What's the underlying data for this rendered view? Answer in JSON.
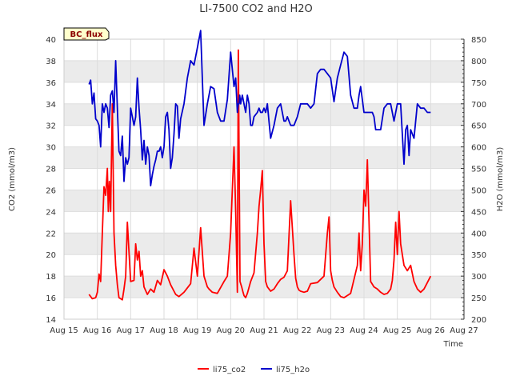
{
  "chart_data": {
    "type": "line",
    "title": "LI-7500 CO2 and H2O",
    "badge": "BC_flux",
    "xlabel": "Time",
    "ylabel_left": "CO2 (mmol/m3)",
    "ylabel_right": "H2O (mmol/m3)",
    "x_tick_labels": [
      "Aug 15",
      "Aug 16",
      "Aug 17",
      "Aug 18",
      "Aug 19",
      "Aug 20",
      "Aug 21",
      "Aug 22",
      "Aug 23",
      "Aug 24",
      "Aug 25",
      "Aug 26",
      "Aug 27"
    ],
    "xlim": [
      15,
      27
    ],
    "ylim_left": [
      14,
      40
    ],
    "ylim_right": [
      200,
      850
    ],
    "y_left_ticks": [
      "14",
      "16",
      "18",
      "20",
      "22",
      "24",
      "26",
      "28",
      "30",
      "32",
      "34",
      "36",
      "38",
      "40"
    ],
    "y_right_ticks": [
      "200",
      "250",
      "300",
      "350",
      "400",
      "450",
      "500",
      "550",
      "600",
      "650",
      "700",
      "750",
      "800",
      "850"
    ],
    "legend": [
      "li75_co2",
      "li75_h2o"
    ],
    "colors": {
      "co2": "#ff0000",
      "h2o": "#0000cc",
      "band": "#ebebeb",
      "grid": "#dddddd"
    },
    "series": [
      {
        "name": "li75_co2",
        "axis": "left",
        "x": [
          15.75,
          15.85,
          15.95,
          16.0,
          16.05,
          16.1,
          16.15,
          16.2,
          16.25,
          16.3,
          16.33,
          16.36,
          16.4,
          16.45,
          16.5,
          16.55,
          16.6,
          16.65,
          16.7,
          16.75,
          16.8,
          16.85,
          16.9,
          17.0,
          17.1,
          17.15,
          17.2,
          17.25,
          17.3,
          17.35,
          17.4,
          17.5,
          17.6,
          17.7,
          17.8,
          17.9,
          18.0,
          18.1,
          18.2,
          18.3,
          18.35,
          18.45,
          18.6,
          18.8,
          18.9,
          19.0,
          19.1,
          19.2,
          19.25,
          19.3,
          19.35,
          19.45,
          19.6,
          19.8,
          19.9,
          20.0,
          20.05,
          20.1,
          20.15,
          20.2,
          20.23,
          20.28,
          20.33,
          20.37,
          20.4,
          20.45,
          20.5,
          20.6,
          20.7,
          20.8,
          20.85,
          20.9,
          20.95,
          21.0,
          21.05,
          21.1,
          21.2,
          21.3,
          21.4,
          21.5,
          21.6,
          21.7,
          21.8,
          21.9,
          21.95,
          22.0,
          22.05,
          22.1,
          22.2,
          22.3,
          22.4,
          22.6,
          22.8,
          22.9,
          22.95,
          23.0,
          23.05,
          23.1,
          23.2,
          23.3,
          23.4,
          23.6,
          23.8,
          23.85,
          23.9,
          23.95,
          24.0,
          24.05,
          24.1,
          24.2,
          24.3,
          24.4,
          24.5,
          24.6,
          24.7,
          24.8,
          24.85,
          24.9,
          24.95,
          25.0,
          25.05,
          25.1,
          25.2,
          25.3,
          25.4,
          25.5,
          25.6,
          25.7,
          25.8,
          25.9,
          26.0
        ],
        "y": [
          16.3,
          15.9,
          16.0,
          16.5,
          18.2,
          17.5,
          22.0,
          26.3,
          25.5,
          28.0,
          24.0,
          26.8,
          24.0,
          34.0,
          22.0,
          19.0,
          17.2,
          16.0,
          15.9,
          15.8,
          16.8,
          18.0,
          23.0,
          17.5,
          17.6,
          21.0,
          19.5,
          20.3,
          18.0,
          18.5,
          17.0,
          16.3,
          16.8,
          16.5,
          17.6,
          17.2,
          18.6,
          18.0,
          17.2,
          16.6,
          16.3,
          16.1,
          16.5,
          17.3,
          20.6,
          18.0,
          22.5,
          18.0,
          17.5,
          17.0,
          16.8,
          16.5,
          16.4,
          17.5,
          18.0,
          22.0,
          26.0,
          30.0,
          24.0,
          16.5,
          39.0,
          17.5,
          17.0,
          16.5,
          16.2,
          16.0,
          16.4,
          17.5,
          18.3,
          22.0,
          24.5,
          26.0,
          27.8,
          21.0,
          17.5,
          17.0,
          16.6,
          16.8,
          17.3,
          17.7,
          17.9,
          18.5,
          25.0,
          20.0,
          17.8,
          17.0,
          16.7,
          16.6,
          16.5,
          16.6,
          17.3,
          17.4,
          18.0,
          22.0,
          23.5,
          18.5,
          17.6,
          17.0,
          16.5,
          16.1,
          16.0,
          16.4,
          19.0,
          22.0,
          18.5,
          21.0,
          26.0,
          24.5,
          28.8,
          17.5,
          17.0,
          16.8,
          16.5,
          16.3,
          16.4,
          16.8,
          17.6,
          19.5,
          23.0,
          20.0,
          24.0,
          21.0,
          19.0,
          18.5,
          19.0,
          17.5,
          16.8,
          16.5,
          16.8,
          17.4,
          18.0
        ]
      },
      {
        "name": "li75_h2o",
        "axis": "right",
        "x": [
          15.75,
          15.8,
          15.85,
          15.9,
          15.95,
          16.0,
          16.05,
          16.1,
          16.15,
          16.2,
          16.25,
          16.3,
          16.35,
          16.4,
          16.45,
          16.5,
          16.55,
          16.6,
          16.65,
          16.7,
          16.75,
          16.8,
          16.85,
          16.9,
          16.95,
          17.0,
          17.05,
          17.1,
          17.15,
          17.2,
          17.25,
          17.3,
          17.35,
          17.4,
          17.45,
          17.5,
          17.55,
          17.6,
          17.65,
          17.7,
          17.75,
          17.8,
          17.85,
          17.9,
          17.95,
          18.0,
          18.05,
          18.1,
          18.15,
          18.2,
          18.25,
          18.3,
          18.35,
          18.4,
          18.45,
          18.5,
          18.6,
          18.7,
          18.8,
          18.9,
          19.0,
          19.1,
          19.2,
          19.3,
          19.4,
          19.5,
          19.6,
          19.7,
          19.8,
          19.9,
          20.0,
          20.1,
          20.15,
          20.2,
          20.23,
          20.25,
          20.27,
          20.3,
          20.35,
          20.4,
          20.45,
          20.5,
          20.55,
          20.6,
          20.65,
          20.7,
          20.8,
          20.85,
          20.9,
          20.95,
          21.0,
          21.05,
          21.1,
          21.15,
          21.2,
          21.3,
          21.35,
          21.4,
          21.5,
          21.6,
          21.65,
          21.7,
          21.8,
          21.9,
          22.0,
          22.1,
          22.2,
          22.3,
          22.4,
          22.5,
          22.6,
          22.7,
          22.8,
          22.9,
          23.0,
          23.1,
          23.2,
          23.3,
          23.4,
          23.5,
          23.6,
          23.7,
          23.8,
          23.85,
          23.9,
          23.95,
          24.0,
          24.1,
          24.2,
          24.25,
          24.3,
          24.35,
          24.4,
          24.5,
          24.6,
          24.7,
          24.8,
          24.9,
          25.0,
          25.1,
          25.2,
          25.25,
          25.3,
          25.35,
          25.4,
          25.5,
          25.6,
          25.7,
          25.8,
          25.9,
          26.0
        ],
        "y": [
          745,
          755,
          700,
          725,
          665,
          660,
          650,
          600,
          700,
          680,
          700,
          690,
          645,
          720,
          730,
          680,
          800,
          690,
          590,
          580,
          625,
          520,
          575,
          560,
          575,
          690,
          670,
          650,
          670,
          760,
          690,
          640,
          570,
          615,
          560,
          600,
          580,
          510,
          535,
          555,
          570,
          590,
          590,
          600,
          575,
          600,
          670,
          680,
          640,
          550,
          575,
          630,
          700,
          695,
          620,
          665,
          700,
          760,
          800,
          790,
          830,
          870,
          650,
          700,
          740,
          735,
          680,
          660,
          660,
          710,
          820,
          740,
          760,
          680,
          700,
          700,
          720,
          700,
          720,
          700,
          680,
          720,
          700,
          650,
          650,
          670,
          680,
          690,
          680,
          680,
          690,
          680,
          700,
          660,
          620,
          650,
          670,
          690,
          700,
          660,
          660,
          670,
          650,
          650,
          670,
          700,
          700,
          700,
          690,
          700,
          770,
          780,
          780,
          770,
          760,
          705,
          760,
          790,
          820,
          810,
          720,
          690,
          690,
          720,
          740,
          710,
          680,
          680,
          680,
          680,
          670,
          640,
          640,
          640,
          690,
          700,
          700,
          660,
          700,
          700,
          560,
          640,
          650,
          580,
          640,
          620,
          700,
          690,
          690,
          680,
          680
        ]
      }
    ]
  }
}
